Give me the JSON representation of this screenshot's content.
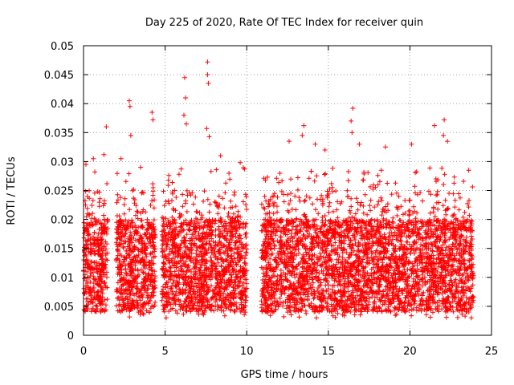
{
  "chart_data": {
    "type": "scatter",
    "title": "Day 225 of 2020, Rate Of TEC Index for receiver quin",
    "xlabel": "GPS time / hours",
    "ylabel": "ROTI / TECUs",
    "xlim": [
      0,
      25
    ],
    "ylim": [
      0,
      0.05
    ],
    "xticks": [
      0,
      5,
      10,
      15,
      20,
      25
    ],
    "yticks": [
      0,
      0.005,
      0.01,
      0.015,
      0.02,
      0.025,
      0.03,
      0.035,
      0.04,
      0.045,
      0.05
    ],
    "xtick_labels": [
      "0",
      "5",
      "10",
      "15",
      "20",
      "25"
    ],
    "ytick_labels": [
      "0",
      "0.005",
      "0.01",
      "0.015",
      "0.02",
      "0.025",
      "0.03",
      "0.035",
      "0.04",
      "0.045",
      "0.05"
    ],
    "grid": true,
    "legend": "none",
    "marker": "+",
    "color": "#ff0000",
    "data_segments_hours": [
      [
        0.0,
        1.5
      ],
      [
        2.0,
        4.4
      ],
      [
        4.8,
        10.0
      ],
      [
        10.9,
        23.9
      ]
    ],
    "peak_points": [
      {
        "x": 0.15,
        "y": 0.0295
      },
      {
        "x": 0.6,
        "y": 0.0305
      },
      {
        "x": 1.25,
        "y": 0.0312
      },
      {
        "x": 1.4,
        "y": 0.036
      },
      {
        "x": 2.3,
        "y": 0.0305
      },
      {
        "x": 2.8,
        "y": 0.0405
      },
      {
        "x": 2.85,
        "y": 0.0395
      },
      {
        "x": 2.9,
        "y": 0.0345
      },
      {
        "x": 3.5,
        "y": 0.029
      },
      {
        "x": 4.2,
        "y": 0.0385
      },
      {
        "x": 4.25,
        "y": 0.0372
      },
      {
        "x": 6.2,
        "y": 0.0445
      },
      {
        "x": 6.25,
        "y": 0.041
      },
      {
        "x": 6.15,
        "y": 0.038
      },
      {
        "x": 6.3,
        "y": 0.0365
      },
      {
        "x": 7.6,
        "y": 0.0472
      },
      {
        "x": 7.6,
        "y": 0.045
      },
      {
        "x": 7.65,
        "y": 0.0435
      },
      {
        "x": 7.55,
        "y": 0.0357
      },
      {
        "x": 7.7,
        "y": 0.0343
      },
      {
        "x": 8.4,
        "y": 0.031
      },
      {
        "x": 9.6,
        "y": 0.0298
      },
      {
        "x": 12.6,
        "y": 0.0335
      },
      {
        "x": 13.5,
        "y": 0.0362
      },
      {
        "x": 13.4,
        "y": 0.0345
      },
      {
        "x": 14.2,
        "y": 0.033
      },
      {
        "x": 14.8,
        "y": 0.032
      },
      {
        "x": 16.5,
        "y": 0.0392
      },
      {
        "x": 16.4,
        "y": 0.037
      },
      {
        "x": 16.45,
        "y": 0.035
      },
      {
        "x": 16.9,
        "y": 0.033
      },
      {
        "x": 18.5,
        "y": 0.0325
      },
      {
        "x": 20.1,
        "y": 0.033
      },
      {
        "x": 21.5,
        "y": 0.0362
      },
      {
        "x": 22.1,
        "y": 0.0372
      },
      {
        "x": 22.05,
        "y": 0.0345
      },
      {
        "x": 22.3,
        "y": 0.0335
      },
      {
        "x": 23.6,
        "y": 0.0285
      }
    ]
  }
}
